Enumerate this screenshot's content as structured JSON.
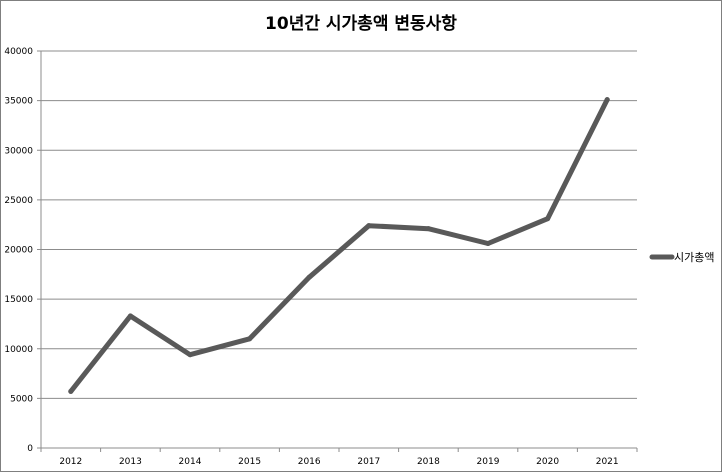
{
  "chart_data": {
    "type": "line",
    "title": "10년간 시가총액 변동사항",
    "xlabel": "",
    "ylabel": "",
    "categories": [
      "2012",
      "2013",
      "2014",
      "2015",
      "2016",
      "2017",
      "2018",
      "2019",
      "2020",
      "2021"
    ],
    "series": [
      {
        "name": "시가총액",
        "values": [
          5700,
          13300,
          9400,
          11000,
          17200,
          22400,
          22100,
          20600,
          23100,
          35100
        ],
        "color": "#595959"
      }
    ],
    "ylim": [
      0,
      40000
    ],
    "yticks": [
      0,
      5000,
      10000,
      15000,
      20000,
      25000,
      30000,
      35000,
      40000
    ],
    "grid": true,
    "legend_position": "right"
  }
}
